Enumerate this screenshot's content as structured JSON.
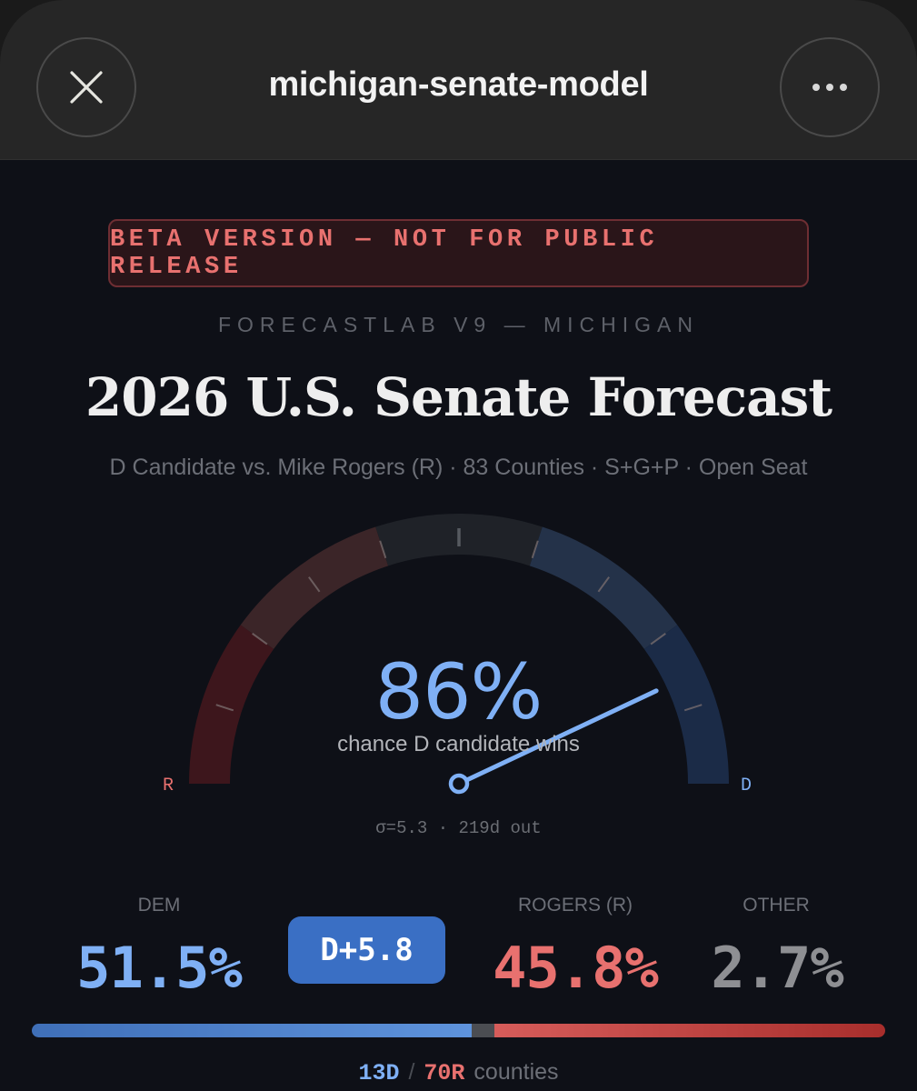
{
  "window": {
    "title": "michigan-senate-model",
    "close_icon": "close-icon",
    "more_icon": "more-horizontal-icon"
  },
  "banner": {
    "text": "BETA VERSION — NOT FOR PUBLIC RELEASE"
  },
  "header": {
    "kicker": "FORECASTLAB V9 — MICHIGAN",
    "title": "2026 U.S. Senate Forecast",
    "subtitle": "D Candidate vs. Mike Rogers (R) · 83 Counties · S+G+P · Open Seat"
  },
  "gauge": {
    "probability": 86,
    "probability_label": "86%",
    "caption": "chance D candidate wins",
    "left_label": "R",
    "right_label": "D",
    "meta": "σ=5.3 · 219d out",
    "segments": [
      {
        "name": "safe-r",
        "color": "#3d161c"
      },
      {
        "name": "lean-r",
        "color": "#3b2528"
      },
      {
        "name": "tossup",
        "color": "#1f2228"
      },
      {
        "name": "lean-d",
        "color": "#243249"
      },
      {
        "name": "safe-d",
        "color": "#1b2b47"
      }
    ],
    "needle_color": "#7fb0f5"
  },
  "results": {
    "dem": {
      "label": "DEM",
      "value": "51.5%",
      "color": "#7fb0f5"
    },
    "margin": {
      "label": "D+5.8",
      "color": "#3a6fc4"
    },
    "rep": {
      "label": "ROGERS (R)",
      "value": "45.8%",
      "color": "#e8716f"
    },
    "other": {
      "label": "OTHER",
      "value": "2.7%",
      "color": "#8e8f93"
    }
  },
  "vote_bar": {
    "dem_pct": 51.5,
    "other_pct": 2.7,
    "rep_pct": 45.8
  },
  "counties": {
    "dem": "13D",
    "separator": "/",
    "rep": "70R",
    "word": "counties"
  },
  "colors": {
    "background": "#0e1017",
    "dem": "#7fb0f5",
    "rep": "#e8716f",
    "accent": "#3a6fc4"
  }
}
